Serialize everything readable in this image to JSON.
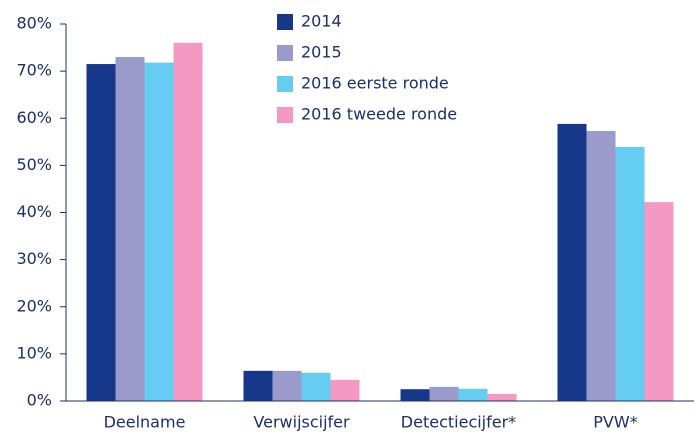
{
  "chart_data": {
    "type": "bar",
    "categories": [
      "Deelname",
      "Verwijscijfer",
      "Detectiecijfer*",
      "PVW*"
    ],
    "series": [
      {
        "name": "2014",
        "color": "#16378a",
        "values": [
          71.5,
          6.4,
          2.5,
          58.8
        ]
      },
      {
        "name": "2015",
        "color": "#9a9acb",
        "values": [
          73,
          6.4,
          3,
          57.3
        ]
      },
      {
        "name": "2016 eerste ronde",
        "color": "#66cdf2",
        "values": [
          71.8,
          6,
          2.6,
          53.9
        ]
      },
      {
        "name": "2016 tweede ronde",
        "color": "#f49ac2",
        "values": [
          76,
          4.5,
          1.5,
          42.2
        ]
      }
    ],
    "ylim": [
      0,
      80
    ],
    "yticks": [
      {
        "value": 0,
        "label": "0%"
      },
      {
        "value": 10,
        "label": "10%"
      },
      {
        "value": 20,
        "label": "20%"
      },
      {
        "value": 30,
        "label": "30%"
      },
      {
        "value": 40,
        "label": "40%"
      },
      {
        "value": 50,
        "label": "50%"
      },
      {
        "value": 60,
        "label": "60%"
      },
      {
        "value": 70,
        "label": "70%"
      },
      {
        "value": 80,
        "label": "80%"
      }
    ],
    "legend": "top"
  }
}
